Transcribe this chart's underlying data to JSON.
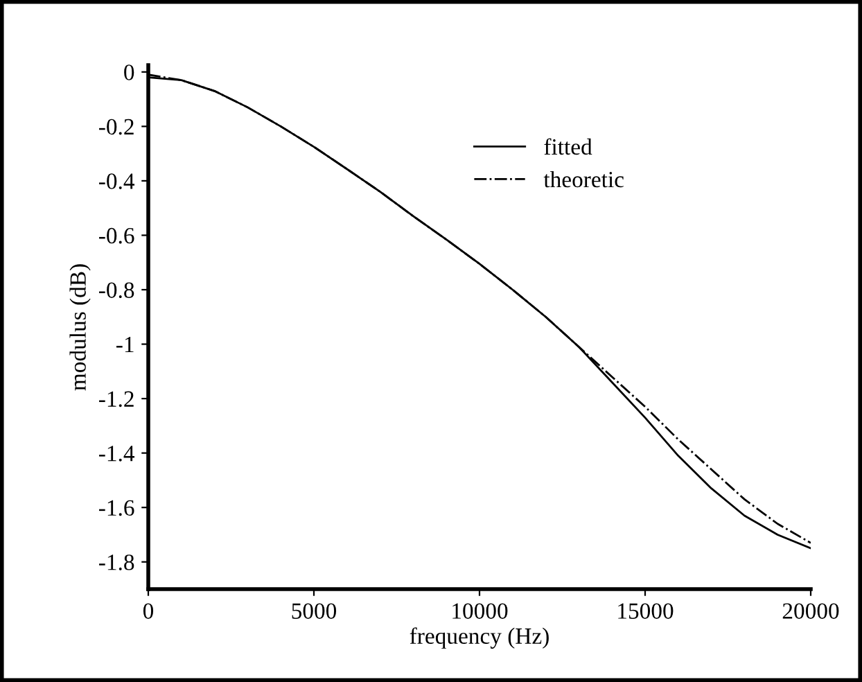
{
  "chart_data": {
    "type": "line",
    "xlabel": "frequency (Hz)",
    "ylabel": "modulus (dB)",
    "xlim": [
      0,
      20000
    ],
    "xticks": [
      0,
      5000,
      10000,
      15000,
      20000
    ],
    "ylim": [
      -1.9,
      0.025
    ],
    "yticks": [
      0,
      -0.2,
      -0.4,
      -0.6,
      -0.8,
      -1,
      -1.2,
      -1.4,
      -1.6,
      -1.8
    ],
    "x": [
      0,
      1000,
      2000,
      3000,
      4000,
      5000,
      6000,
      7000,
      8000,
      9000,
      10000,
      11000,
      12000,
      13000,
      14000,
      15000,
      16000,
      17000,
      18000,
      19000,
      20000
    ],
    "series": [
      {
        "name": "fitted",
        "color": "#000000",
        "line_style": "solid",
        "values": [
          -0.02,
          -0.03,
          -0.07,
          -0.13,
          -0.2,
          -0.275,
          -0.357,
          -0.44,
          -0.53,
          -0.616,
          -0.705,
          -0.8,
          -0.9,
          -1.01,
          -1.14,
          -1.27,
          -1.41,
          -1.53,
          -1.63,
          -1.7,
          -1.75
        ]
      },
      {
        "name": "theoretic",
        "color": "#000000",
        "line_style": "dashdot",
        "values": [
          -0.01,
          -0.03,
          -0.07,
          -0.13,
          -0.2,
          -0.275,
          -0.357,
          -0.44,
          -0.53,
          -0.616,
          -0.705,
          -0.8,
          -0.9,
          -1.01,
          -1.12,
          -1.23,
          -1.35,
          -1.46,
          -1.57,
          -1.66,
          -1.73
        ]
      }
    ],
    "legend": "top right",
    "grid": false,
    "marker": "none"
  }
}
